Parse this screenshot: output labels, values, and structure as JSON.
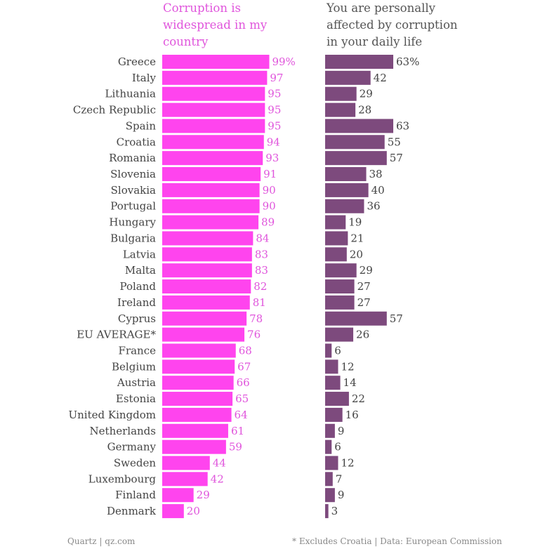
{
  "chart_data": {
    "type": "bar",
    "orientation": "horizontal",
    "categories": [
      "Greece",
      "Italy",
      "Lithuania",
      "Czech Republic",
      "Spain",
      "Croatia",
      "Romania",
      "Slovenia",
      "Slovakia",
      "Portugal",
      "Hungary",
      "Bulgaria",
      "Latvia",
      "Malta",
      "Poland",
      "Ireland",
      "Cyprus",
      "EU AVERAGE*",
      "France",
      "Belgium",
      "Austria",
      "Estonia",
      "United Kingdom",
      "Netherlands",
      "Germany",
      "Sweden",
      "Luxembourg",
      "Finland",
      "Denmark"
    ],
    "series": [
      {
        "name": "Corruption is widespread in my country",
        "color": "#ff44ee",
        "label_color": "#e055dc",
        "values": [
          99,
          97,
          95,
          95,
          95,
          94,
          93,
          91,
          90,
          90,
          89,
          84,
          83,
          83,
          82,
          81,
          78,
          76,
          68,
          67,
          66,
          65,
          64,
          61,
          59,
          44,
          42,
          29,
          20
        ]
      },
      {
        "name": "You are personally affected by corruption in your daily life",
        "color": "#7d4a7d",
        "label_color": "#444444",
        "values": [
          63,
          42,
          29,
          28,
          63,
          55,
          57,
          38,
          40,
          36,
          19,
          21,
          20,
          29,
          27,
          27,
          57,
          26,
          6,
          12,
          14,
          22,
          16,
          9,
          6,
          12,
          7,
          9,
          3
        ]
      }
    ],
    "first_label_suffix": "%",
    "xlim": [
      0,
      100
    ]
  },
  "footer": {
    "left": "Quartz | qz.com",
    "right": "* Excludes Croatia | Data: European Commission"
  }
}
